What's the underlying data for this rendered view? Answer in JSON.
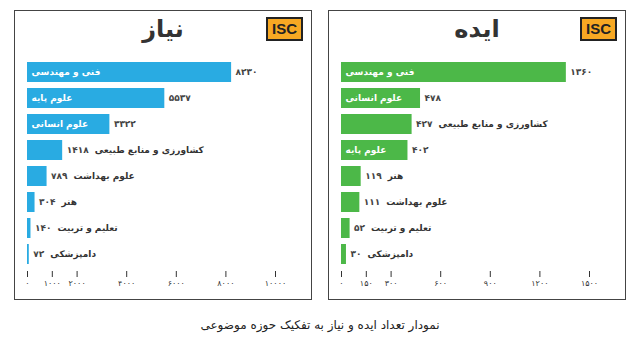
{
  "logo": "ISC",
  "caption": "نمودار تعداد ایده و نیاز به تفکیک حوزه موضوعی",
  "chart_data": [
    {
      "type": "bar",
      "orientation": "horizontal",
      "title": "نیاز",
      "categories": [
        "فنی و مهندسی",
        "علوم پایه",
        "علوم انسانی",
        "کشاورزی و منابع طبیعی",
        "علوم بهداشت",
        "هنر",
        "تعلیم و تربیت",
        "دامپزشکی"
      ],
      "values": [
        8230,
        5537,
        3322,
        1418,
        789,
        304,
        140,
        72
      ],
      "value_labels": [
        "۸۲۳۰",
        "۵۵۳۷",
        "۳۳۲۲",
        "۱۴۱۸",
        "۷۸۹",
        "۳۰۴",
        "۱۴۰",
        "۷۲"
      ],
      "color": "#29abe2",
      "xlim": [
        0,
        10000
      ],
      "xticks": [
        {
          "value": 0,
          "label": "۰"
        },
        {
          "value": 1000,
          "label": "۱۰۰۰"
        },
        {
          "value": 2000,
          "label": "۲۰۰۰"
        },
        {
          "value": 4000,
          "label": "۴۰۰۰"
        },
        {
          "value": 6000,
          "label": "۶۰۰۰"
        },
        {
          "value": 8000,
          "label": "۸۰۰۰"
        },
        {
          "value": 10000,
          "label": "۱۰۰۰۰"
        }
      ],
      "data_labels": true,
      "grid": false,
      "tick_labels": "x"
    },
    {
      "type": "bar",
      "orientation": "horizontal",
      "title": "ایده",
      "categories": [
        "فنی و مهندسی",
        "علوم انسانی",
        "کشاورزی و منابع طبیعی",
        "علوم پایه",
        "هنر",
        "علوم بهداشت",
        "تعلیم و تربیت",
        "دامپزشکی"
      ],
      "values": [
        1360,
        478,
        427,
        402,
        119,
        111,
        52,
        30
      ],
      "value_labels": [
        "۱۳۶۰",
        "۴۷۸",
        "۴۲۷",
        "۴۰۲",
        "۱۱۹",
        "۱۱۱",
        "۵۲",
        "۳۰"
      ],
      "color": "#4cb848",
      "xlim": [
        0,
        1500
      ],
      "xticks": [
        {
          "value": 0,
          "label": "۰"
        },
        {
          "value": 150,
          "label": "۱۵۰"
        },
        {
          "value": 300,
          "label": "۳۰۰"
        },
        {
          "value": 600,
          "label": "۶۰۰"
        },
        {
          "value": 900,
          "label": "۹۰۰"
        },
        {
          "value": 1200,
          "label": "۱۲۰۰"
        },
        {
          "value": 1500,
          "label": "۱۵۰۰"
        }
      ],
      "data_labels": true,
      "grid": false,
      "tick_labels": "x"
    }
  ]
}
